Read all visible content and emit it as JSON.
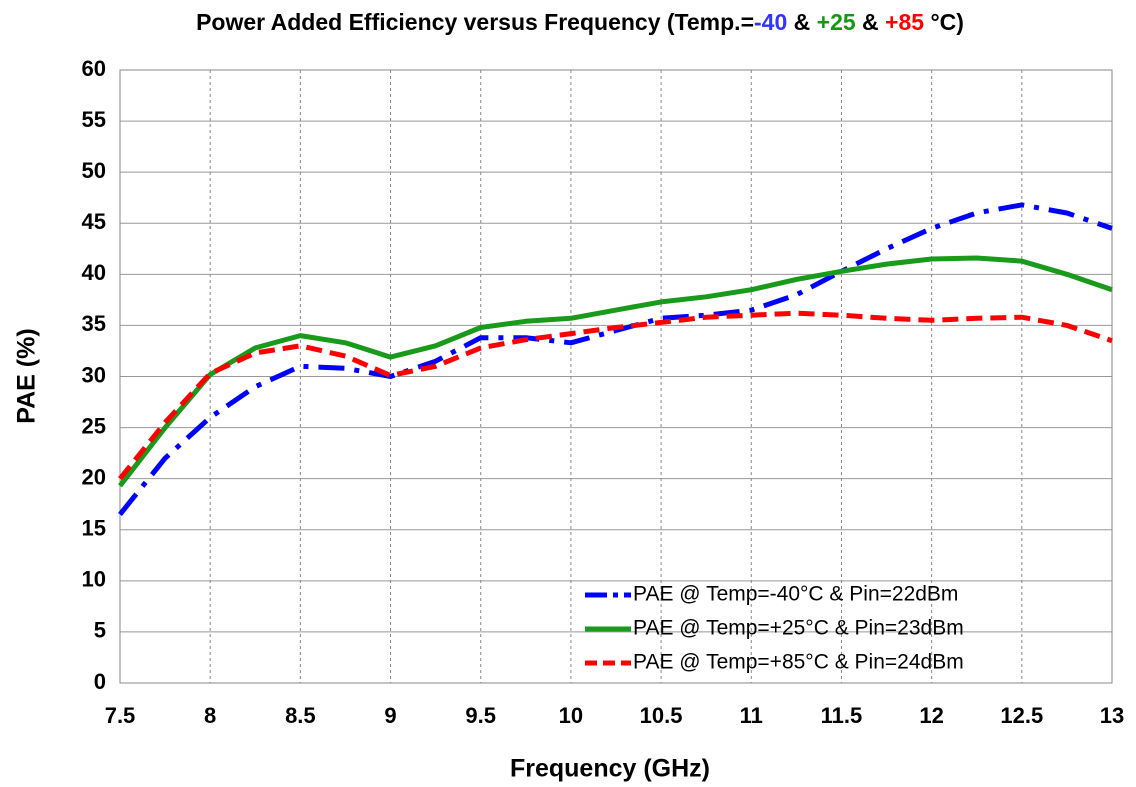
{
  "chart_data": {
    "type": "line",
    "title_parts": [
      {
        "text": "Power Added Efficiency versus Frequency (Temp.=",
        "color": "#000000"
      },
      {
        "text": "-40",
        "color": "#3333ff"
      },
      {
        "text": " & ",
        "color": "#000000"
      },
      {
        "text": "+25",
        "color": "#129912"
      },
      {
        "text": " & ",
        "color": "#000000"
      },
      {
        "text": "+85",
        "color": "#ff0000"
      },
      {
        "text": " °C)",
        "color": "#000000"
      }
    ],
    "x_label": "Frequency (GHz)",
    "y_label": "PAE (%)",
    "x": [
      7.5,
      7.75,
      8,
      8.25,
      8.5,
      8.75,
      9,
      9.25,
      9.5,
      9.75,
      10,
      10.25,
      10.5,
      10.75,
      11,
      11.25,
      11.5,
      11.75,
      12,
      12.25,
      12.5,
      12.75,
      13
    ],
    "series": [
      {
        "name": "PAE @ Temp=-40°C & Pin=22dBm",
        "color": "#0000ff",
        "style": "dashdot",
        "values": [
          16.5,
          22,
          26,
          29,
          31,
          30.8,
          30,
          31.5,
          33.8,
          33.8,
          33.3,
          34.5,
          35.7,
          36,
          36.5,
          38,
          40.3,
          42.5,
          44.5,
          46,
          46.8,
          46,
          44.5
        ]
      },
      {
        "name": "PAE @ Temp=+25°C & Pin=23dBm",
        "color": "#1a9a1a",
        "style": "solid",
        "values": [
          19.3,
          25,
          30.2,
          32.8,
          34,
          33.3,
          31.9,
          33,
          34.8,
          35.4,
          35.7,
          36.5,
          37.3,
          37.8,
          38.5,
          39.5,
          40.3,
          41,
          41.5,
          41.6,
          41.3,
          40,
          38.5
        ]
      },
      {
        "name": "PAE @ Temp=+85°C & Pin=24dBm",
        "color": "#ff0000",
        "style": "dashed",
        "values": [
          20,
          25.5,
          30.3,
          32.3,
          33,
          32,
          30.1,
          31,
          32.8,
          33.6,
          34.2,
          34.8,
          35.3,
          35.8,
          36,
          36.2,
          36,
          35.7,
          35.5,
          35.7,
          35.8,
          35,
          33.5
        ]
      }
    ],
    "xlim": [
      7.5,
      13
    ],
    "xticks": [
      7.5,
      8,
      8.5,
      9,
      9.5,
      10,
      10.5,
      11,
      11.5,
      12,
      12.5,
      13
    ],
    "ylim": [
      0,
      60
    ],
    "yticks": [
      0,
      5,
      10,
      15,
      20,
      25,
      30,
      35,
      40,
      45,
      50,
      55,
      60
    ],
    "grid": true,
    "legend": "lower right"
  }
}
